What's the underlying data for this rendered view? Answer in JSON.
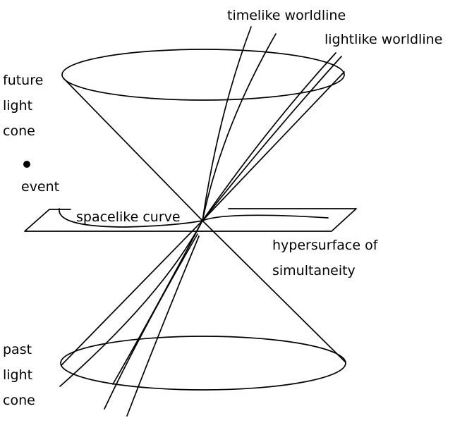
{
  "labels": {
    "timelike_worldline": "timelike worldline",
    "lightlike_worldline": "lightlike worldline",
    "future_light_cone": [
      "future",
      "light",
      "cone"
    ],
    "event": "event",
    "spacelike_curve": "spacelike curve",
    "hypersurface": [
      "hypersurface of",
      "simultaneity"
    ],
    "past_light_cone": [
      "past",
      "light",
      "cone"
    ]
  },
  "colors": {
    "ink": "#000000",
    "background": "#ffffff"
  }
}
